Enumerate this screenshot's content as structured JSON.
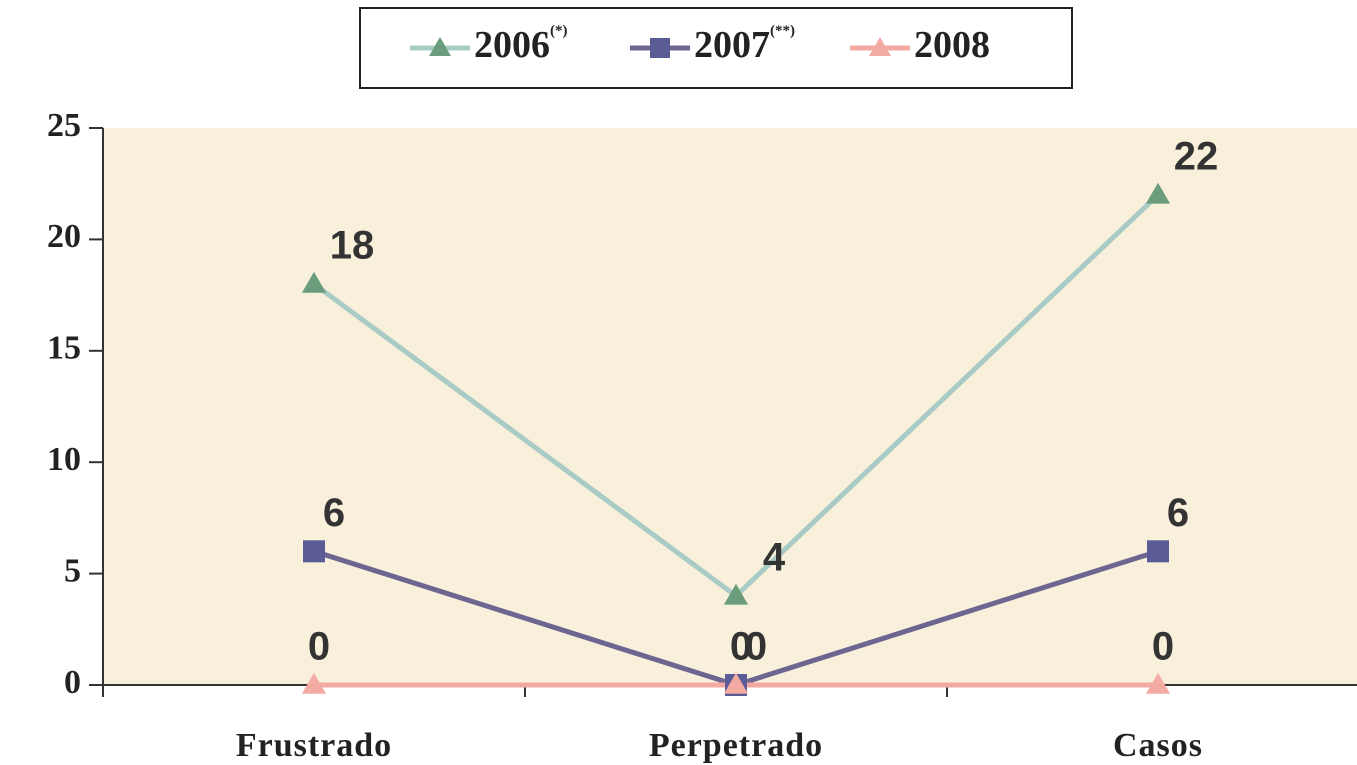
{
  "chart_data": {
    "type": "line",
    "categories": [
      "Frustrado",
      "Perpetrado",
      "Casos"
    ],
    "series": [
      {
        "name": "2006",
        "note": "(*)",
        "color": "#a9cbc6",
        "marker_color": "#6b9c7c",
        "marker": "triangle",
        "values": [
          18,
          4,
          22
        ]
      },
      {
        "name": "2007",
        "note": "(**)",
        "color": "#6c6690",
        "marker_color": "#5b5b96",
        "marker": "square",
        "values": [
          6,
          0,
          6
        ]
      },
      {
        "name": "2008",
        "color": "#f2aaa2",
        "marker_color": "#f2aaa2",
        "marker": "triangle",
        "values": [
          0,
          0,
          0
        ]
      }
    ],
    "ylim": [
      0,
      25
    ],
    "yticks": [
      0,
      5,
      10,
      15,
      20,
      25
    ],
    "legend": "top"
  }
}
